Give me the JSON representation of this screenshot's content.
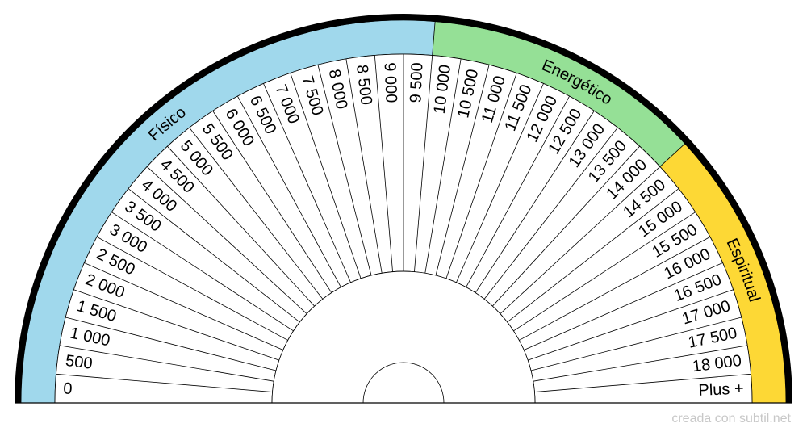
{
  "chart_data": {
    "type": "pendulum-chart",
    "sector_labels": [
      "0",
      "500",
      "1 000",
      "1 500",
      "2 000",
      "2 500",
      "3 000",
      "3 500",
      "4 000",
      "4 500",
      "5 000",
      "5 500",
      "6 000",
      "6 500",
      "7 000",
      "7 500",
      "8 000",
      "8 500",
      "9 000",
      "9 500",
      "10 000",
      "10 500",
      "11 000",
      "11 500",
      "12 000",
      "12 500",
      "13 000",
      "13 500",
      "14 000",
      "14 500",
      "15 000",
      "15 500",
      "16 000",
      "16 500",
      "17 000",
      "17 500",
      "18 000",
      "Plus +"
    ],
    "bands": [
      {
        "label": "Físico",
        "color": "#a0d8ec",
        "from_sector": 0,
        "to_sector": 20
      },
      {
        "label": "Energético",
        "color": "#95e096",
        "from_sector": 20,
        "to_sector": 29
      },
      {
        "label": "Espiritual",
        "color": "#fdd835",
        "from_sector": 29,
        "to_sector": 37
      }
    ]
  },
  "credit": "creada con subtil.net"
}
